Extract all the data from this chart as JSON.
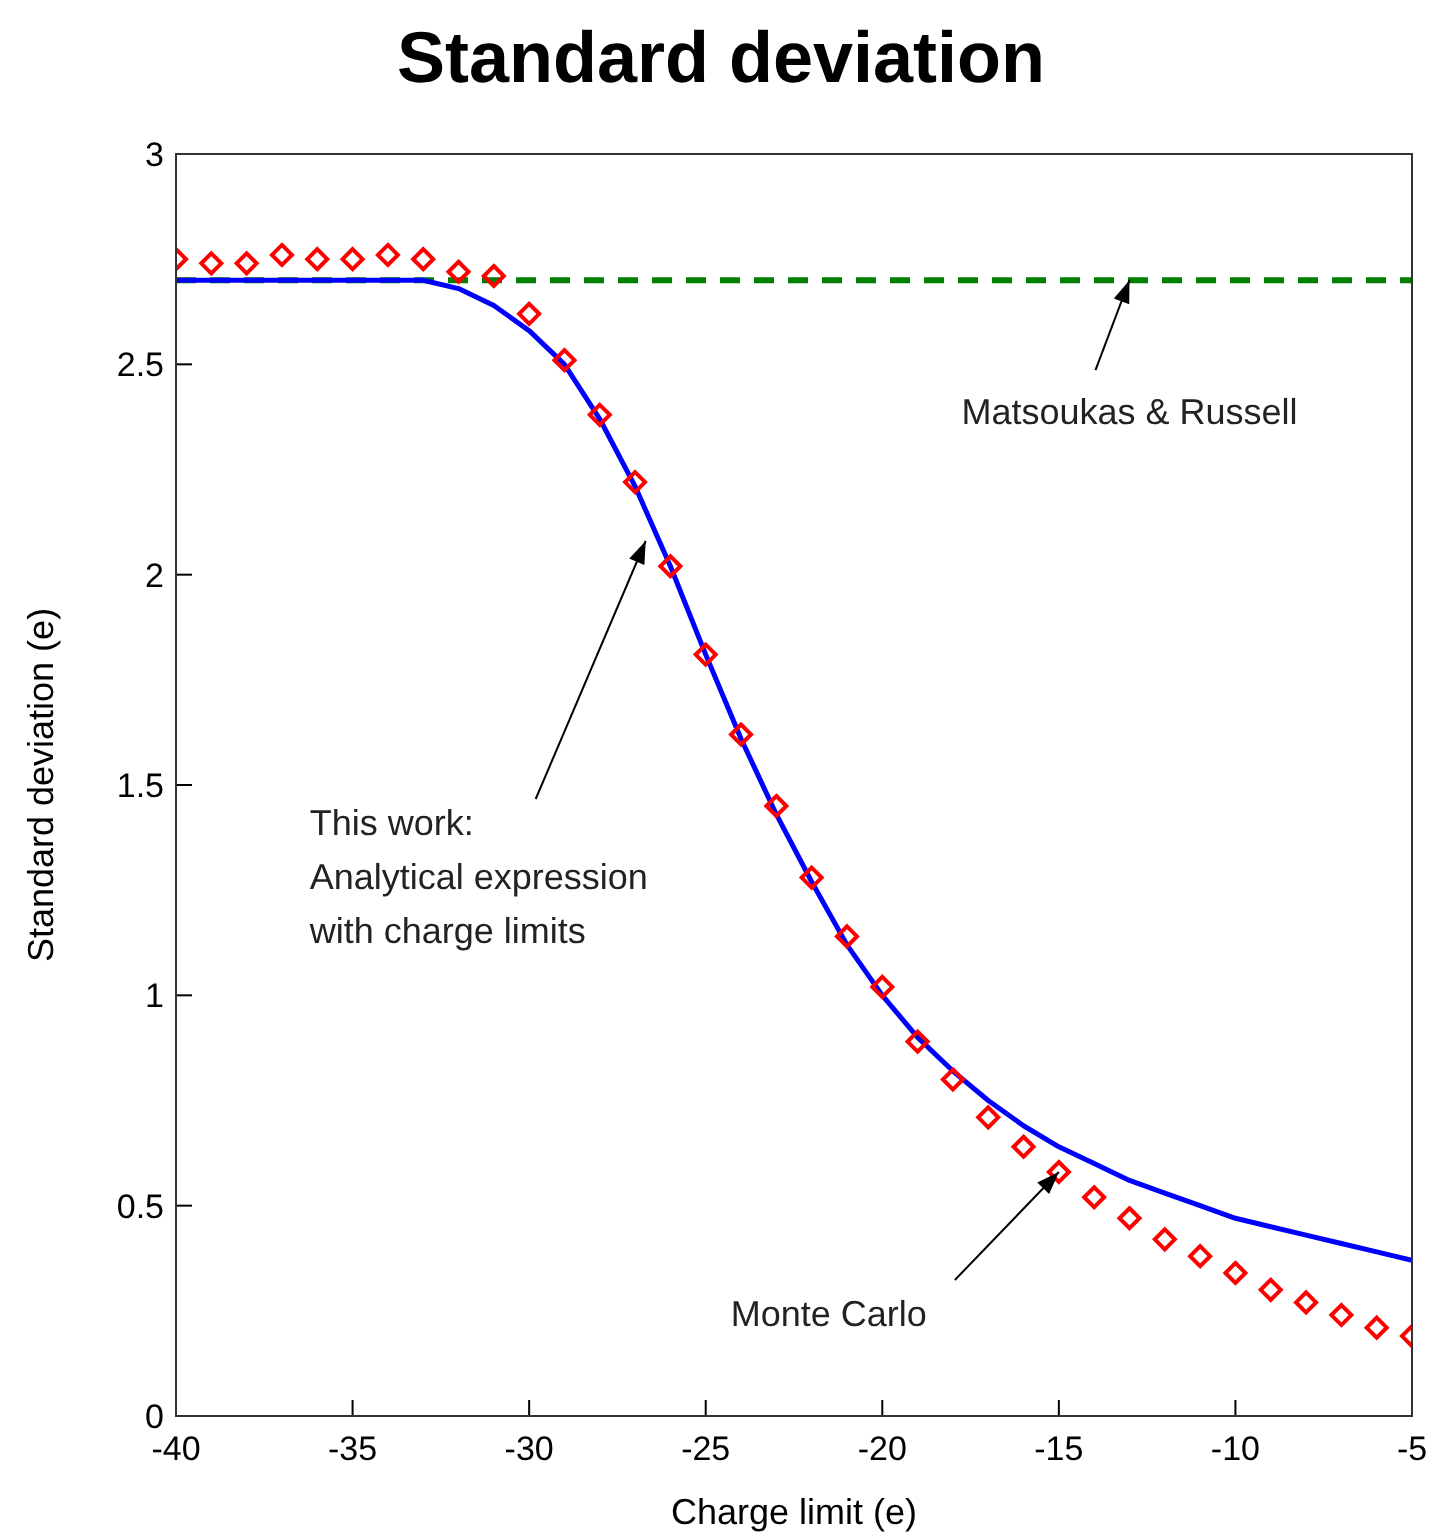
{
  "chart_data": {
    "type": "line",
    "title": "Standard deviation",
    "xlabel": "Charge limit (e)",
    "ylabel": "Standard deviation (e)",
    "xlim": [
      -40,
      -5
    ],
    "xticks": [
      -40,
      -35,
      -30,
      -25,
      -20,
      -15,
      -10,
      -5
    ],
    "ylim": [
      0,
      3
    ],
    "yticks": [
      0,
      0.5,
      1,
      1.5,
      2,
      2.5,
      3
    ],
    "grid": false,
    "legend": false,
    "series": [
      {
        "color": "#008000",
        "line_style": "dashed",
        "marker": "none",
        "x": [
          -40,
          -5
        ],
        "values": [
          2.7,
          2.7
        ]
      },
      {
        "color": "#0000ff",
        "line_style": "solid",
        "marker": "none",
        "x": [
          -40,
          -39,
          -38,
          -37,
          -36,
          -35,
          -34,
          -33,
          -32,
          -31,
          -30,
          -29,
          -28,
          -27,
          -26,
          -25,
          -24,
          -23,
          -22,
          -21,
          -20,
          -19,
          -18,
          -17,
          -16,
          -15,
          -14,
          -13,
          -12,
          -11,
          -10,
          -9,
          -8,
          -7,
          -6,
          -5
        ],
        "values": [
          2.7,
          2.7,
          2.7,
          2.7,
          2.7,
          2.7,
          2.7,
          2.7,
          2.68,
          2.64,
          2.58,
          2.5,
          2.37,
          2.21,
          2.02,
          1.81,
          1.61,
          1.43,
          1.27,
          1.12,
          1.0,
          0.9,
          0.82,
          0.75,
          0.69,
          0.64,
          0.6,
          0.56,
          0.53,
          0.5,
          0.47,
          0.45,
          0.43,
          0.41,
          0.39,
          0.37
        ]
      },
      {
        "type": "scatter",
        "color": "#ff0000",
        "marker": "diamond",
        "x": [
          -40,
          -39,
          -38,
          -37,
          -36,
          -35,
          -34,
          -33,
          -32,
          -31,
          -30,
          -29,
          -28,
          -27,
          -26,
          -25,
          -24,
          -23,
          -22,
          -21,
          -20,
          -19,
          -18,
          -17,
          -16,
          -15,
          -14,
          -13,
          -12,
          -11,
          -10,
          -9,
          -8,
          -7,
          -6,
          -5
        ],
        "values": [
          2.75,
          2.74,
          2.74,
          2.76,
          2.75,
          2.75,
          2.76,
          2.75,
          2.72,
          2.71,
          2.62,
          2.51,
          2.38,
          2.22,
          2.02,
          1.81,
          1.62,
          1.45,
          1.28,
          1.14,
          1.02,
          0.89,
          0.8,
          0.71,
          0.64,
          0.58,
          0.52,
          0.47,
          0.42,
          0.38,
          0.34,
          0.3,
          0.27,
          0.24,
          0.21,
          0.19
        ]
      }
    ],
    "annotations": [
      {
        "text": "Matsoukas & Russell",
        "x": -13,
        "y": 2.7
      },
      {
        "text": "This work:\nAnalytical expression\nwith charge limits",
        "x": -26.7,
        "y": 2.08
      },
      {
        "text": "Monte Carlo",
        "x": -15,
        "y": 0.58
      }
    ]
  }
}
